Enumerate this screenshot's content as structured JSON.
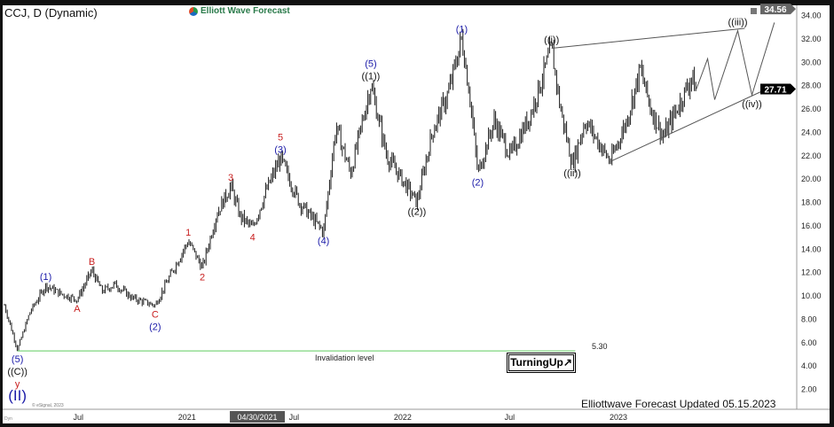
{
  "header": {
    "title": "CCJ, D (Dynamic)",
    "brand": "Elliott Wave Forecast"
  },
  "footer": {
    "updated": "Elliottwave Forecast Updated 05.15.2023",
    "copyright": "© eSignal, 2023",
    "dyn": "Dyn"
  },
  "badge": {
    "label": "TurningUp↗"
  },
  "invalidation": {
    "label": "Invalidation level",
    "value": 5.3,
    "value_label": "5.30",
    "color": "#7fd67f",
    "start": "2020-03-20",
    "end": "2022-10-20"
  },
  "colors": {
    "blue": "#1a1aa8",
    "red": "#c81e1e",
    "black": "#111111",
    "bar": "#1a1a1a",
    "projection": "#555555"
  },
  "chart_data": {
    "type": "ohlc",
    "symbol": "CCJ",
    "interval": "D",
    "ylim": [
      0,
      34.56
    ],
    "y_ticks": [
      2,
      4,
      6,
      8,
      10,
      12,
      14,
      16,
      18,
      20,
      22,
      24,
      26,
      28,
      30,
      32,
      34
    ],
    "y_tick_labels": [
      "2.00",
      "4.00",
      "6.00",
      "8.00",
      "10.00",
      "12.00",
      "14.00",
      "16.00",
      "18.00",
      "20.00",
      "22.00",
      "24.00",
      "26.00",
      "28.00",
      "30.00",
      "32.00",
      "34.00"
    ],
    "x_ticks": [
      {
        "date": "2020-07-01",
        "label": "Jul"
      },
      {
        "date": "2021-01-01",
        "label": "2021"
      },
      {
        "date": "2021-07-01",
        "label": "Jul"
      },
      {
        "date": "2022-01-01",
        "label": "2022"
      },
      {
        "date": "2022-07-01",
        "label": "Jul"
      },
      {
        "date": "2023-01-01",
        "label": "2023"
      }
    ],
    "cursor_date_label": {
      "date": "2021-04-30",
      "label": "04/30/2021"
    },
    "last_price": {
      "value": 27.71,
      "label": "27.71"
    },
    "top_price": {
      "value": 34.56,
      "label": "34.56"
    },
    "price_path": [
      [
        "2020-02-27",
        9.2
      ],
      [
        "2020-03-20",
        5.4
      ],
      [
        "2020-04-10",
        8.6
      ],
      [
        "2020-05-07",
        10.9
      ],
      [
        "2020-06-01",
        10.2
      ],
      [
        "2020-06-29",
        9.7
      ],
      [
        "2020-07-24",
        12.2
      ],
      [
        "2020-08-10",
        10.4
      ],
      [
        "2020-09-01",
        11.0
      ],
      [
        "2020-10-01",
        9.8
      ],
      [
        "2020-11-08",
        9.2
      ],
      [
        "2020-12-01",
        11.5
      ],
      [
        "2021-01-03",
        14.7
      ],
      [
        "2021-01-27",
        12.4
      ],
      [
        "2021-02-20",
        17.0
      ],
      [
        "2021-03-16",
        19.4
      ],
      [
        "2021-04-01",
        16.8
      ],
      [
        "2021-04-22",
        15.8
      ],
      [
        "2021-05-15",
        19.0
      ],
      [
        "2021-06-08",
        21.8
      ],
      [
        "2021-07-10",
        18.0
      ],
      [
        "2021-08-20",
        15.5
      ],
      [
        "2021-09-10",
        24.5
      ],
      [
        "2021-10-05",
        20.5
      ],
      [
        "2021-11-08",
        28.1
      ],
      [
        "2021-12-05",
        22.0
      ],
      [
        "2022-01-25",
        18.0
      ],
      [
        "2022-02-20",
        24.0
      ],
      [
        "2022-03-20",
        27.5
      ],
      [
        "2022-04-11",
        32.1
      ],
      [
        "2022-04-25",
        27.0
      ],
      [
        "2022-05-08",
        20.5
      ],
      [
        "2022-06-05",
        25.0
      ],
      [
        "2022-07-02",
        22.0
      ],
      [
        "2022-08-05",
        25.5
      ],
      [
        "2022-09-10",
        31.2
      ],
      [
        "2022-09-25",
        26.0
      ],
      [
        "2022-10-15",
        21.3
      ],
      [
        "2022-11-06",
        25.0
      ],
      [
        "2022-12-18",
        21.5
      ],
      [
        "2023-01-15",
        25.0
      ],
      [
        "2023-02-07",
        29.4
      ],
      [
        "2023-02-25",
        26.0
      ],
      [
        "2023-03-18",
        23.6
      ],
      [
        "2023-04-10",
        26.0
      ],
      [
        "2023-05-05",
        28.7
      ],
      [
        "2023-05-13",
        27.71
      ]
    ],
    "projection": [
      [
        "2023-05-13",
        27.71
      ],
      [
        "2023-06-01",
        30.3
      ],
      [
        "2023-06-13",
        26.8
      ],
      [
        "2023-07-22",
        32.7
      ],
      [
        "2023-08-15",
        27.2
      ],
      [
        "2023-09-22",
        33.4
      ]
    ],
    "trendlines": [
      {
        "name": "upper-wedge",
        "from": [
          "2022-09-10",
          31.2
        ],
        "to": [
          "2023-08-03",
          32.9
        ]
      },
      {
        "name": "lower-wedge",
        "from": [
          "2022-12-18",
          21.5
        ],
        "to": [
          "2023-09-17",
          27.9
        ]
      }
    ],
    "wave_labels": [
      {
        "date": "2020-03-20",
        "price": 5.4,
        "side": "below",
        "labels": [
          [
            "(5)",
            "blue"
          ],
          [
            "((C))",
            "black"
          ],
          [
            "y",
            "red"
          ],
          [
            "(II)",
            "blue"
          ]
        ]
      },
      {
        "date": "2020-05-07",
        "price": 10.9,
        "side": "above",
        "labels": [
          [
            "(1)",
            "blue"
          ]
        ]
      },
      {
        "date": "2020-06-29",
        "price": 9.7,
        "side": "below",
        "labels": [
          [
            "A",
            "red"
          ]
        ]
      },
      {
        "date": "2020-07-24",
        "price": 12.2,
        "side": "above",
        "labels": [
          [
            "B",
            "red"
          ]
        ]
      },
      {
        "date": "2020-11-08",
        "price": 9.2,
        "side": "below",
        "labels": [
          [
            "C",
            "red"
          ],
          [
            "(2)",
            "blue"
          ]
        ]
      },
      {
        "date": "2021-01-03",
        "price": 14.7,
        "side": "above",
        "labels": [
          [
            "1",
            "red"
          ]
        ]
      },
      {
        "date": "2021-01-27",
        "price": 12.4,
        "side": "below",
        "labels": [
          [
            "2",
            "red"
          ]
        ]
      },
      {
        "date": "2021-03-16",
        "price": 19.4,
        "side": "above",
        "labels": [
          [
            "3",
            "red"
          ]
        ]
      },
      {
        "date": "2021-04-22",
        "price": 15.8,
        "side": "below",
        "labels": [
          [
            "4",
            "red"
          ]
        ]
      },
      {
        "date": "2021-06-08",
        "price": 21.8,
        "side": "above",
        "labels": [
          [
            "5",
            "red"
          ],
          [
            "(3)",
            "blue"
          ]
        ]
      },
      {
        "date": "2021-08-20",
        "price": 15.5,
        "side": "below",
        "labels": [
          [
            "(4)",
            "blue"
          ]
        ]
      },
      {
        "date": "2021-11-08",
        "price": 28.1,
        "side": "above",
        "labels": [
          [
            "(5)",
            "blue"
          ],
          [
            "((1))",
            "black"
          ]
        ]
      },
      {
        "date": "2022-01-25",
        "price": 18.0,
        "side": "below",
        "labels": [
          [
            "((2))",
            "black"
          ]
        ]
      },
      {
        "date": "2022-04-11",
        "price": 32.1,
        "side": "above",
        "labels": [
          [
            "(1)",
            "blue"
          ]
        ]
      },
      {
        "date": "2022-05-08",
        "price": 20.5,
        "side": "below",
        "labels": [
          [
            "(2)",
            "blue"
          ]
        ]
      },
      {
        "date": "2022-09-10",
        "price": 31.2,
        "side": "above",
        "labels": [
          [
            "((i))",
            "black"
          ]
        ]
      },
      {
        "date": "2022-10-15",
        "price": 21.3,
        "side": "below",
        "labels": [
          [
            "((ii))",
            "black"
          ]
        ]
      },
      {
        "date": "2023-07-22",
        "price": 32.7,
        "side": "above",
        "labels": [
          [
            "((iii))",
            "black"
          ]
        ]
      },
      {
        "date": "2023-08-15",
        "price": 27.2,
        "side": "below",
        "labels": [
          [
            "((iv))",
            "black"
          ]
        ]
      }
    ]
  }
}
